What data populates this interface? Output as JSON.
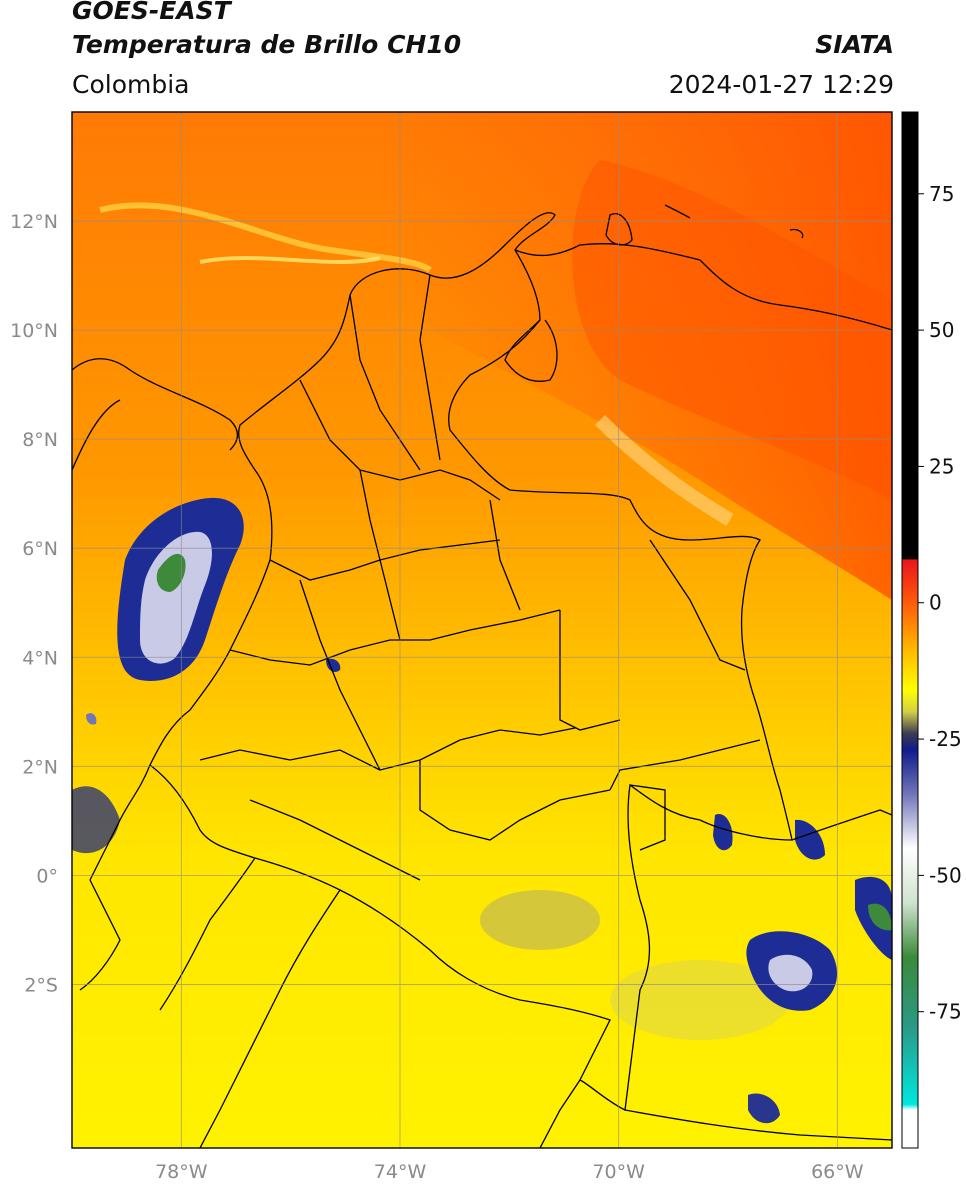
{
  "header": {
    "satellite": "GOES-EAST",
    "product": "Temperatura de Brillo CH10",
    "region": "Colombia",
    "brand": "SIATA",
    "timestamp": "2024-01-27 12:29"
  },
  "map": {
    "lon_range": [
      -80.0,
      -65.0
    ],
    "lat_range": [
      -5.0,
      14.0
    ],
    "grid": true,
    "lon_ticks": [
      {
        "value": -78,
        "label": "78°W"
      },
      {
        "value": -74,
        "label": "74°W"
      },
      {
        "value": -70,
        "label": "70°W"
      },
      {
        "value": -66,
        "label": "66°W"
      }
    ],
    "lat_ticks": [
      {
        "value": 12,
        "label": "12°N"
      },
      {
        "value": 10,
        "label": "10°N"
      },
      {
        "value": 8,
        "label": "8°N"
      },
      {
        "value": 6,
        "label": "6°N"
      },
      {
        "value": 4,
        "label": "4°N"
      },
      {
        "value": 2,
        "label": "2°N"
      },
      {
        "value": 0,
        "label": "0°"
      },
      {
        "value": -2,
        "label": "2°S"
      }
    ]
  },
  "colorbar": {
    "range": [
      -100,
      90
    ],
    "ticks": [
      75,
      50,
      25,
      0,
      -25,
      -50,
      -75
    ],
    "tick_labels": [
      "75",
      "50",
      "25",
      "0",
      "-25",
      "-50",
      "-75"
    ],
    "stops": [
      {
        "value": 90,
        "color": "#000000"
      },
      {
        "value": 8,
        "color": "#000000"
      },
      {
        "value": 7.9,
        "color": "#e8141c"
      },
      {
        "value": 0,
        "color": "#ff5a0a"
      },
      {
        "value": -8,
        "color": "#ffb300"
      },
      {
        "value": -16,
        "color": "#ffff00"
      },
      {
        "value": -20,
        "color": "#d2cf48"
      },
      {
        "value": -24,
        "color": "#3b3b52"
      },
      {
        "value": -27,
        "color": "#101c8c"
      },
      {
        "value": -35,
        "color": "#6f74b8"
      },
      {
        "value": -45,
        "color": "#ffffff"
      },
      {
        "value": -55,
        "color": "#cfe3cf"
      },
      {
        "value": -65,
        "color": "#3c8a3a"
      },
      {
        "value": -78,
        "color": "#2a9a88"
      },
      {
        "value": -92,
        "color": "#00e8e0"
      },
      {
        "value": -93,
        "color": "#ffffff"
      },
      {
        "value": -100,
        "color": "#ffffff"
      }
    ]
  }
}
